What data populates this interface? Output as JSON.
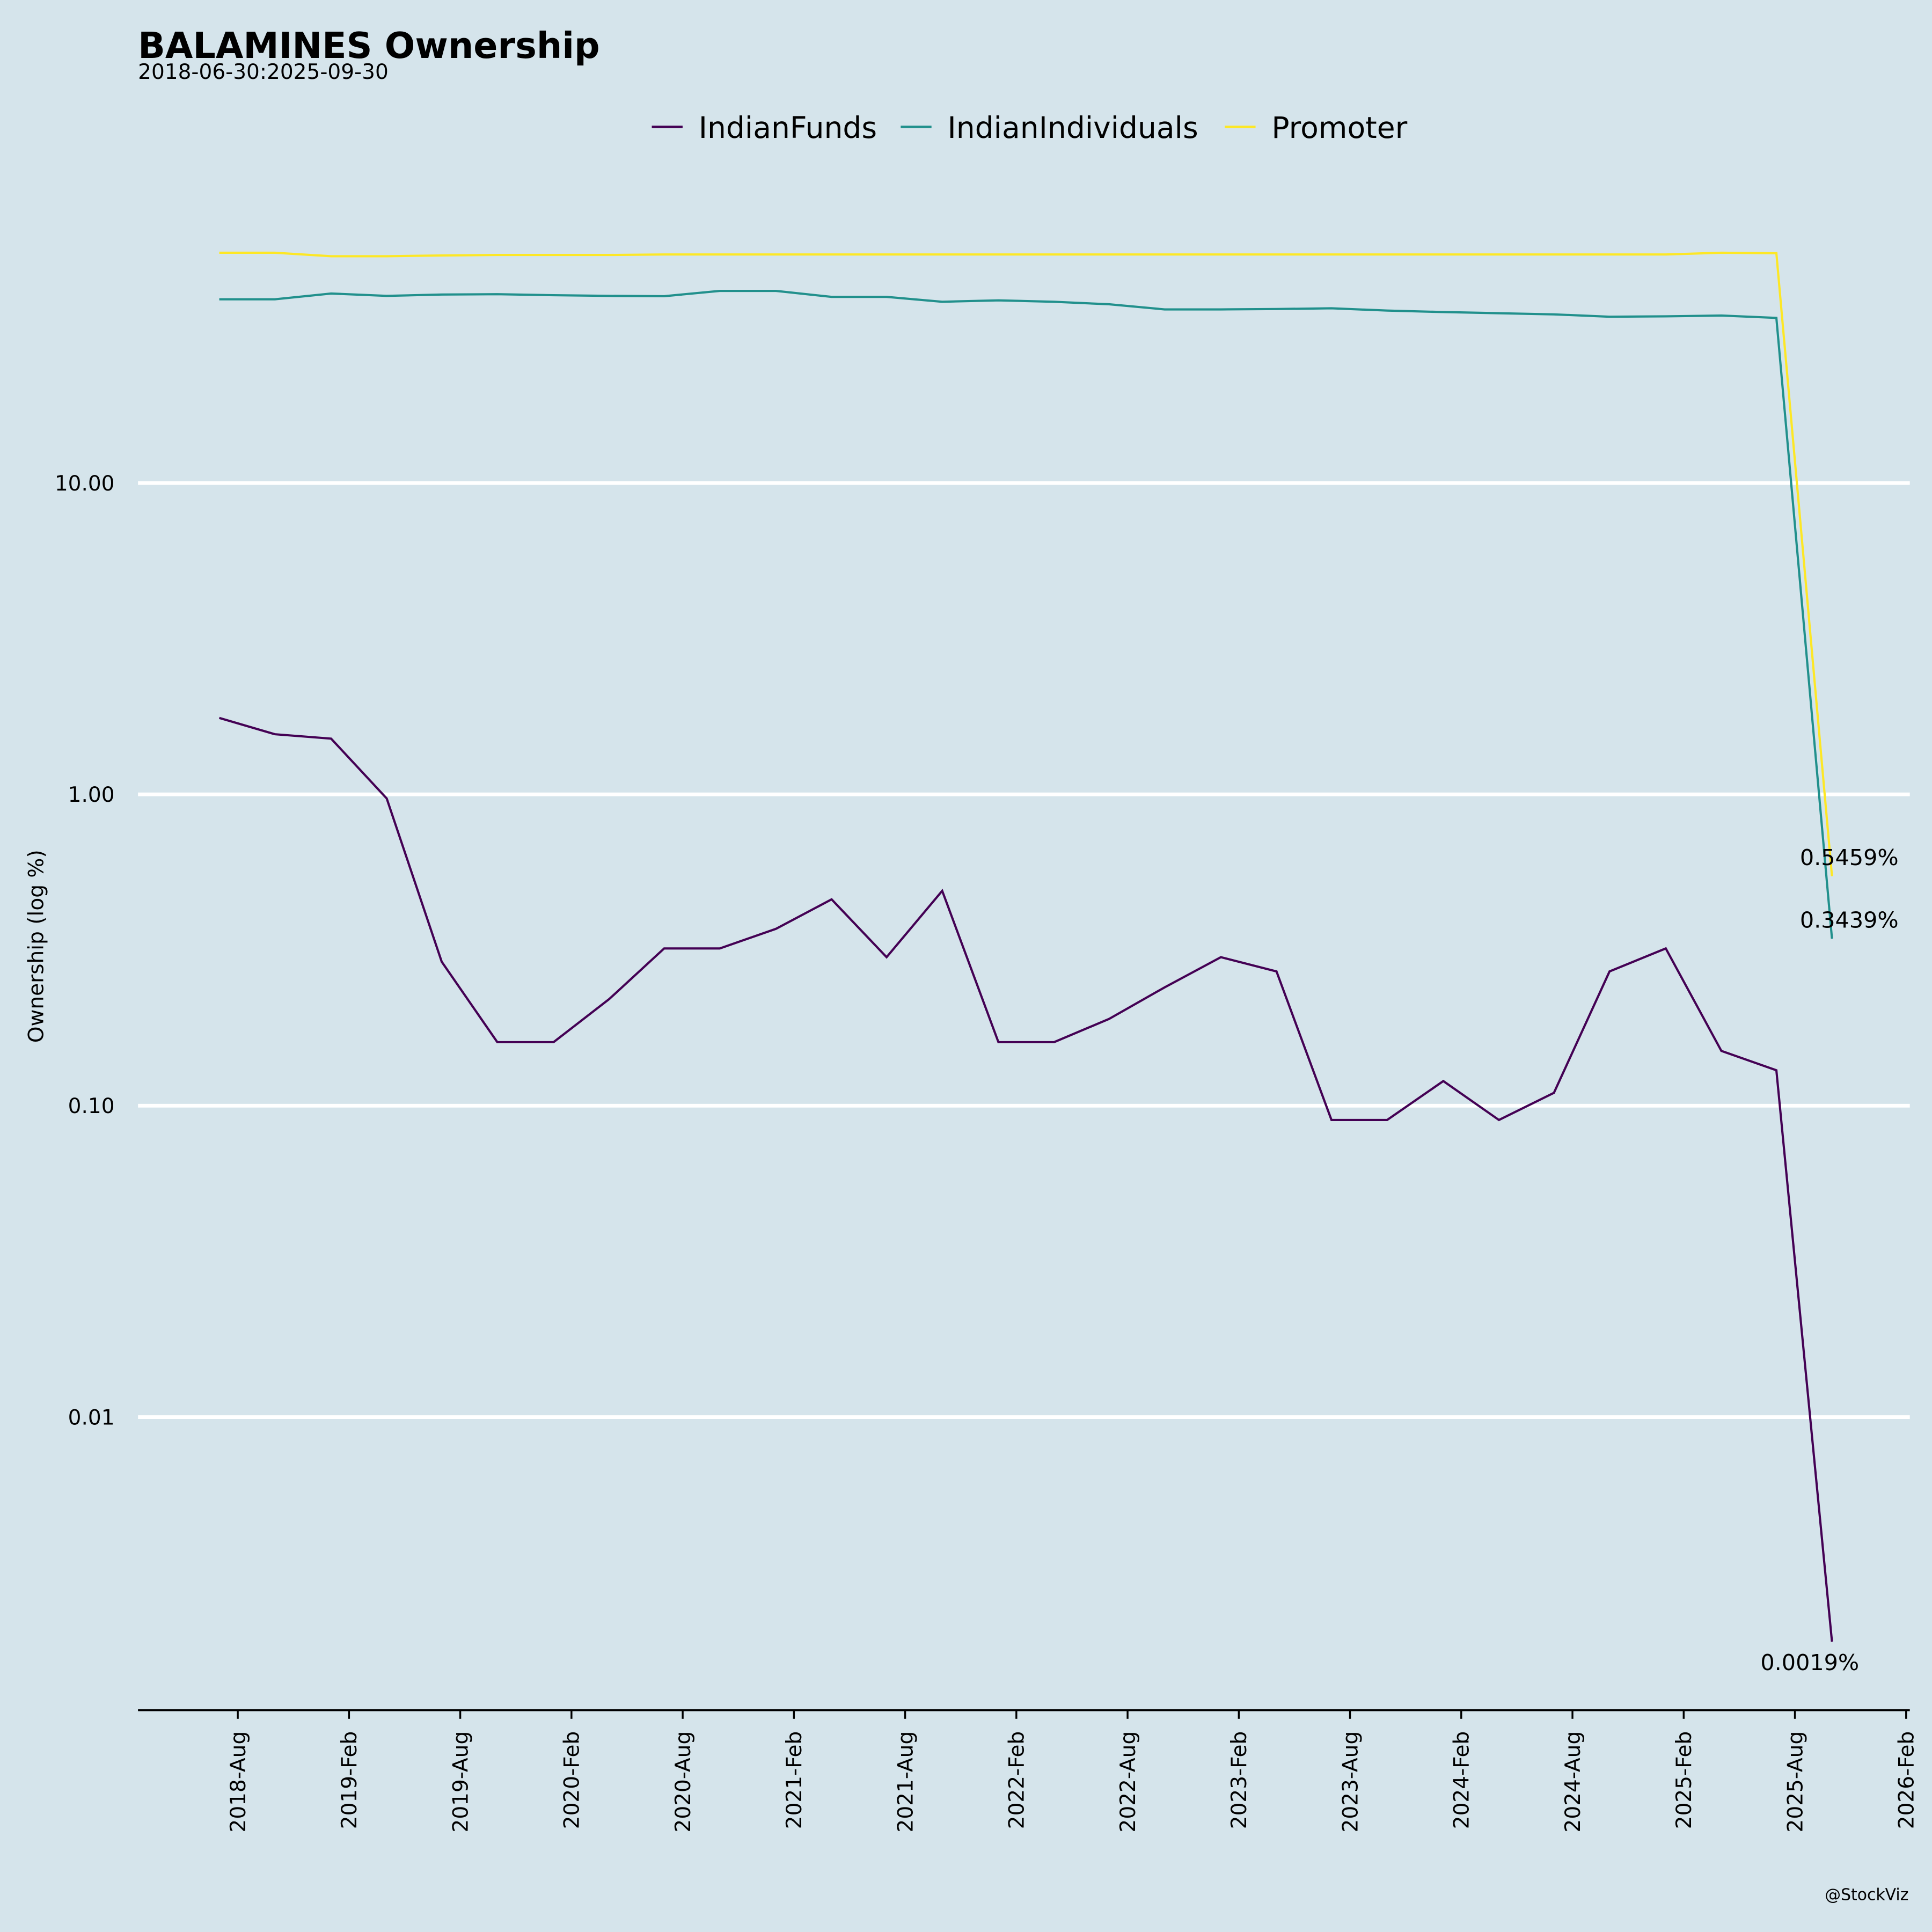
{
  "chart_data": {
    "type": "line",
    "title": "BALAMINES Ownership",
    "subtitle": "2018-06-30:2025-09-30",
    "xlabel": "",
    "ylabel": "Ownership (log %)",
    "yscale": "log",
    "ylim": [
      0.00114,
      90
    ],
    "grid": true,
    "legend_position": "top-center",
    "y_ticks": [
      {
        "value": 10,
        "label": "10.00"
      },
      {
        "value": 1,
        "label": "1.00"
      },
      {
        "value": 0.1,
        "label": "0.10"
      },
      {
        "value": 0.01,
        "label": "0.01"
      }
    ],
    "x_ticks": [
      "2018-Aug",
      "2019-Feb",
      "2019-Aug",
      "2020-Feb",
      "2020-Aug",
      "2021-Feb",
      "2021-Aug",
      "2022-Feb",
      "2022-Aug",
      "2023-Feb",
      "2023-Aug",
      "2024-Feb",
      "2024-Aug",
      "2025-Feb",
      "2025-Aug",
      "2026-Feb"
    ],
    "x": [
      "2018-06-30",
      "2018-09-30",
      "2018-12-31",
      "2019-03-31",
      "2019-06-30",
      "2019-09-30",
      "2019-12-31",
      "2020-03-31",
      "2020-06-30",
      "2020-09-30",
      "2020-12-31",
      "2021-03-31",
      "2021-06-30",
      "2021-09-30",
      "2021-12-31",
      "2022-03-31",
      "2022-06-30",
      "2022-09-30",
      "2022-12-31",
      "2023-03-31",
      "2023-06-30",
      "2023-09-30",
      "2023-12-31",
      "2024-03-31",
      "2024-06-30",
      "2024-09-30",
      "2024-12-31",
      "2025-03-31",
      "2025-06-30",
      "2025-09-30"
    ],
    "series": [
      {
        "name": "IndianFunds",
        "color": "#440154",
        "values": [
          1.76,
          1.56,
          1.51,
          0.97,
          0.29,
          0.16,
          0.16,
          0.22,
          0.32,
          0.32,
          0.37,
          0.46,
          0.3,
          0.49,
          0.16,
          0.16,
          0.19,
          0.24,
          0.3,
          0.27,
          0.09,
          0.09,
          0.12,
          0.09,
          0.11,
          0.27,
          0.32,
          0.15,
          0.13,
          0.0019
        ]
      },
      {
        "name": "IndianIndividuals",
        "color": "#21908c",
        "values": [
          38.9,
          38.9,
          40.6,
          39.9,
          40.3,
          40.4,
          40.1,
          39.9,
          39.8,
          41.4,
          41.4,
          39.6,
          39.6,
          38.2,
          38.6,
          38.2,
          37.5,
          36.1,
          36.1,
          36.2,
          36.4,
          35.8,
          35.4,
          35.1,
          34.8,
          34.2,
          34.3,
          34.5,
          33.9,
          0.3439
        ]
      },
      {
        "name": "Promoter",
        "color": "#fde725",
        "values": [
          54.9,
          54.9,
          53.5,
          53.5,
          53.8,
          54.0,
          54.0,
          54.0,
          54.2,
          54.2,
          54.2,
          54.2,
          54.2,
          54.2,
          54.2,
          54.2,
          54.2,
          54.2,
          54.2,
          54.2,
          54.2,
          54.2,
          54.2,
          54.2,
          54.2,
          54.2,
          54.2,
          54.9,
          54.7,
          0.5459
        ]
      }
    ],
    "annotations": [
      {
        "series": "Promoter",
        "label": "0.5459%"
      },
      {
        "series": "IndianIndividuals",
        "label": "0.3439%"
      },
      {
        "series": "IndianFunds",
        "label": "0.0019%"
      }
    ],
    "credit": "@StockViz"
  }
}
